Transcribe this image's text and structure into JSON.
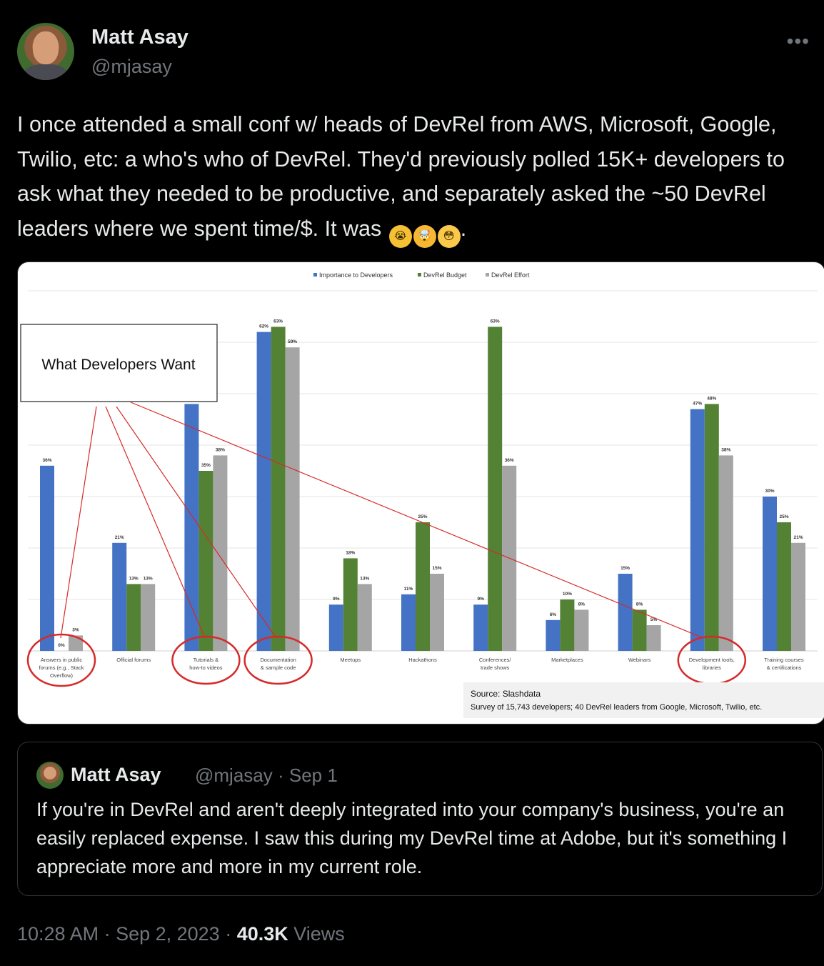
{
  "tweet": {
    "author_name": "Matt Asay",
    "author_handle": "@mjasay",
    "more_icon": "•••",
    "text": "I once attended a small conf w/ heads of DevRel from AWS, Microsoft, Google, Twilio, etc: a who's who of DevRel. They'd previously polled 15K+ developers to ask what they needed to be productive, and separately asked the ~50 DevRel leaders where we spent time/$. It was",
    "emojis": [
      "loudly-crying-face",
      "exploding-head",
      "flushed-face"
    ],
    "text_end": ".",
    "timestamp": "10:28 AM · Sep 2, 2023 · ",
    "views_count": "40.3K",
    "views_label": " Views"
  },
  "quoted_tweet": {
    "author_name": "Matt Asay",
    "author_handle": "@mjasay",
    "date": "Sep 1",
    "separator": " · ",
    "text": "If you're in DevRel and aren't deeply integrated into your company's business, you're an easily replaced expense. I saw this during my DevRel time at Adobe, but it's something I appreciate more and more in my current role."
  },
  "chart_data": {
    "type": "bar",
    "categories": [
      [
        "Answers in public",
        "forums (e.g., Stack",
        "Overflow)"
      ],
      [
        "Official forums"
      ],
      [
        "Tutorials &",
        "how-to videos"
      ],
      [
        "Documentation",
        "& sample code"
      ],
      [
        "Meetups"
      ],
      [
        "Hackathons"
      ],
      [
        "Conferences/",
        "trade shows"
      ],
      [
        "Marketplaces"
      ],
      [
        "Webinars"
      ],
      [
        "Development tools,",
        "libraries"
      ],
      [
        "Training courses",
        "& certifications"
      ]
    ],
    "series": [
      {
        "name": "Importance to Developers",
        "color": "#4472c4",
        "values": [
          36,
          21,
          48,
          62,
          9,
          11,
          9,
          6,
          15,
          47,
          30
        ]
      },
      {
        "name": "DevRel Budget",
        "color": "#548235",
        "values": [
          0,
          13,
          35,
          63,
          18,
          25,
          63,
          10,
          8,
          48,
          25
        ]
      },
      {
        "name": "DevRel Effort",
        "color": "#a5a5a5",
        "values": [
          3,
          13,
          38,
          59,
          13,
          15,
          36,
          8,
          5,
          38,
          21
        ]
      }
    ],
    "data_labels": [
      [
        "36%",
        "0%",
        "3%"
      ],
      [
        "21%",
        "13%",
        "13%"
      ],
      [
        "",
        "35%",
        "38%"
      ],
      [
        "62%",
        "63%",
        "59%"
      ],
      [
        "9%",
        "18%",
        "13%"
      ],
      [
        "11%",
        "25%",
        "15%"
      ],
      [
        "9%",
        "63%",
        "36%"
      ],
      [
        "6%",
        "10%",
        "8%"
      ],
      [
        "15%",
        "8%",
        "5%"
      ],
      [
        "47%",
        "48%",
        "38%"
      ],
      [
        "30%",
        "25%",
        "21%"
      ]
    ],
    "ylim": [
      0,
      70
    ],
    "grid": true,
    "legend": "top-center",
    "highlighted_categories": [
      0,
      2,
      3,
      9
    ],
    "callout": "What Developers Want",
    "source": "Source: Slashdata",
    "note": "Survey of 15,743 developers; 40 DevRel leaders from Google, Microsoft, Twilio, etc."
  }
}
